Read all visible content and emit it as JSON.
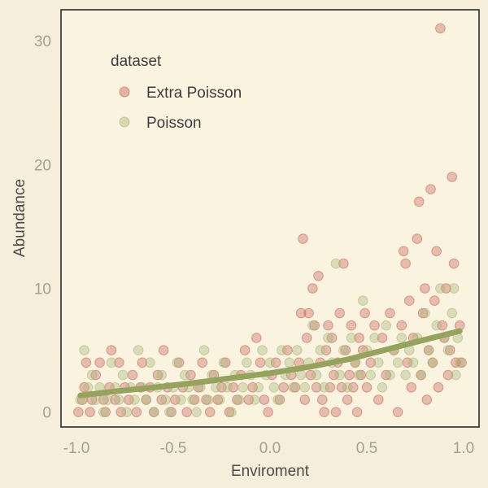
{
  "chart_data": {
    "type": "scatter",
    "xlabel": "Enviroment",
    "ylabel": "Abundance",
    "xlim": [
      -1.08,
      1.08
    ],
    "ylim": [
      -1.2,
      32.5
    ],
    "xticks": [
      -1.0,
      -0.5,
      0.0,
      0.5,
      1.0
    ],
    "xtick_labels": [
      "-1.0",
      "-0.5",
      "0.0",
      "0.5",
      "1.0"
    ],
    "yticks": [
      0,
      10,
      20,
      30
    ],
    "ytick_labels": [
      "0",
      "10",
      "20",
      "30"
    ],
    "grid": false,
    "legend": {
      "title": "dataset",
      "placement": "top-left",
      "entries": [
        {
          "label": "Extra Poisson",
          "color": "#c8635a"
        },
        {
          "label": "Poisson",
          "color": "#a9b87a"
        }
      ]
    },
    "series": [
      {
        "name": "Extra Poisson",
        "color": "#c8635a",
        "points": [
          [
            -0.99,
            0
          ],
          [
            -0.97,
            1
          ],
          [
            -0.96,
            2
          ],
          [
            -0.95,
            4
          ],
          [
            -0.93,
            0
          ],
          [
            -0.92,
            1
          ],
          [
            -0.9,
            3
          ],
          [
            -0.88,
            4
          ],
          [
            -0.86,
            1
          ],
          [
            -0.85,
            0
          ],
          [
            -0.83,
            2
          ],
          [
            -0.82,
            5
          ],
          [
            -0.8,
            1
          ],
          [
            -0.78,
            4
          ],
          [
            -0.77,
            0
          ],
          [
            -0.75,
            2
          ],
          [
            -0.73,
            1
          ],
          [
            -0.71,
            3
          ],
          [
            -0.69,
            0
          ],
          [
            -0.67,
            2
          ],
          [
            -0.66,
            4
          ],
          [
            -0.64,
            1
          ],
          [
            -0.62,
            2
          ],
          [
            -0.6,
            0
          ],
          [
            -0.58,
            3
          ],
          [
            -0.56,
            1
          ],
          [
            -0.55,
            5
          ],
          [
            -0.53,
            2
          ],
          [
            -0.51,
            0
          ],
          [
            -0.49,
            1
          ],
          [
            -0.47,
            4
          ],
          [
            -0.45,
            2
          ],
          [
            -0.43,
            0
          ],
          [
            -0.41,
            3
          ],
          [
            -0.39,
            1
          ],
          [
            -0.37,
            2
          ],
          [
            -0.35,
            4
          ],
          [
            -0.33,
            1
          ],
          [
            -0.31,
            0
          ],
          [
            -0.29,
            3
          ],
          [
            -0.27,
            1
          ],
          [
            -0.25,
            2
          ],
          [
            -0.23,
            4
          ],
          [
            -0.21,
            0
          ],
          [
            -0.19,
            2
          ],
          [
            -0.17,
            1
          ],
          [
            -0.15,
            3
          ],
          [
            -0.13,
            5
          ],
          [
            -0.11,
            1
          ],
          [
            -0.09,
            2
          ],
          [
            -0.07,
            6
          ],
          [
            -0.05,
            4
          ],
          [
            -0.03,
            1
          ],
          [
            -0.01,
            0
          ],
          [
            0.01,
            3
          ],
          [
            0.03,
            4
          ],
          [
            0.05,
            1
          ],
          [
            0.07,
            2
          ],
          [
            0.09,
            5
          ],
          [
            0.11,
            3
          ],
          [
            0.13,
            2
          ],
          [
            0.15,
            4
          ],
          [
            0.16,
            8
          ],
          [
            0.17,
            14
          ],
          [
            0.18,
            1
          ],
          [
            0.19,
            6
          ],
          [
            0.2,
            8
          ],
          [
            0.21,
            3
          ],
          [
            0.22,
            10
          ],
          [
            0.23,
            7
          ],
          [
            0.24,
            2
          ],
          [
            0.25,
            11
          ],
          [
            0.26,
            4
          ],
          [
            0.27,
            1
          ],
          [
            0.28,
            0
          ],
          [
            0.29,
            5
          ],
          [
            0.3,
            7
          ],
          [
            0.31,
            2
          ],
          [
            0.32,
            6
          ],
          [
            0.33,
            3
          ],
          [
            0.34,
            0
          ],
          [
            0.35,
            4
          ],
          [
            0.36,
            8
          ],
          [
            0.37,
            2
          ],
          [
            0.38,
            12
          ],
          [
            0.39,
            5
          ],
          [
            0.4,
            1
          ],
          [
            0.41,
            3
          ],
          [
            0.42,
            7
          ],
          [
            0.43,
            2
          ],
          [
            0.44,
            4
          ],
          [
            0.45,
            0
          ],
          [
            0.46,
            6
          ],
          [
            0.47,
            3
          ],
          [
            0.48,
            5
          ],
          [
            0.49,
            8
          ],
          [
            0.5,
            2
          ],
          [
            0.52,
            4
          ],
          [
            0.54,
            7
          ],
          [
            0.56,
            1
          ],
          [
            0.58,
            6
          ],
          [
            0.6,
            3
          ],
          [
            0.62,
            8
          ],
          [
            0.64,
            5
          ],
          [
            0.66,
            0
          ],
          [
            0.68,
            7
          ],
          [
            0.69,
            13
          ],
          [
            0.7,
            12
          ],
          [
            0.71,
            4
          ],
          [
            0.72,
            9
          ],
          [
            0.73,
            2
          ],
          [
            0.74,
            6
          ],
          [
            0.76,
            14
          ],
          [
            0.77,
            17
          ],
          [
            0.78,
            3
          ],
          [
            0.79,
            8
          ],
          [
            0.8,
            10
          ],
          [
            0.81,
            1
          ],
          [
            0.82,
            5
          ],
          [
            0.83,
            18
          ],
          [
            0.84,
            4
          ],
          [
            0.85,
            9
          ],
          [
            0.86,
            13
          ],
          [
            0.87,
            2
          ],
          [
            0.88,
            31
          ],
          [
            0.89,
            7
          ],
          [
            0.9,
            6
          ],
          [
            0.91,
            10
          ],
          [
            0.92,
            3
          ],
          [
            0.93,
            5
          ],
          [
            0.94,
            19
          ],
          [
            0.95,
            12
          ],
          [
            0.96,
            4
          ],
          [
            0.98,
            7
          ],
          [
            0.99,
            4
          ]
        ]
      },
      {
        "name": "Poisson",
        "color": "#a9b87a",
        "points": [
          [
            -0.98,
            1
          ],
          [
            -0.96,
            5
          ],
          [
            -0.94,
            2
          ],
          [
            -0.92,
            3
          ],
          [
            -0.9,
            1
          ],
          [
            -0.88,
            2
          ],
          [
            -0.86,
            0
          ],
          [
            -0.84,
            1
          ],
          [
            -0.82,
            4
          ],
          [
            -0.8,
            2
          ],
          [
            -0.78,
            1
          ],
          [
            -0.76,
            3
          ],
          [
            -0.74,
            0
          ],
          [
            -0.72,
            2
          ],
          [
            -0.7,
            1
          ],
          [
            -0.68,
            5
          ],
          [
            -0.66,
            2
          ],
          [
            -0.64,
            1
          ],
          [
            -0.62,
            4
          ],
          [
            -0.6,
            0
          ],
          [
            -0.58,
            2
          ],
          [
            -0.56,
            3
          ],
          [
            -0.54,
            1
          ],
          [
            -0.52,
            0
          ],
          [
            -0.5,
            2
          ],
          [
            -0.48,
            4
          ],
          [
            -0.46,
            1
          ],
          [
            -0.44,
            3
          ],
          [
            -0.42,
            2
          ],
          [
            -0.4,
            1
          ],
          [
            -0.38,
            0
          ],
          [
            -0.36,
            2
          ],
          [
            -0.34,
            5
          ],
          [
            -0.32,
            1
          ],
          [
            -0.3,
            3
          ],
          [
            -0.28,
            2
          ],
          [
            -0.26,
            1
          ],
          [
            -0.24,
            4
          ],
          [
            -0.22,
            2
          ],
          [
            -0.2,
            0
          ],
          [
            -0.18,
            3
          ],
          [
            -0.16,
            1
          ],
          [
            -0.14,
            2
          ],
          [
            -0.12,
            4
          ],
          [
            -0.1,
            3
          ],
          [
            -0.08,
            1
          ],
          [
            -0.06,
            2
          ],
          [
            -0.04,
            5
          ],
          [
            -0.02,
            3
          ],
          [
            0.0,
            4
          ],
          [
            0.02,
            2
          ],
          [
            0.04,
            1
          ],
          [
            0.06,
            5
          ],
          [
            0.08,
            3
          ],
          [
            0.1,
            4
          ],
          [
            0.12,
            2
          ],
          [
            0.14,
            5
          ],
          [
            0.16,
            3
          ],
          [
            0.18,
            2
          ],
          [
            0.2,
            4
          ],
          [
            0.22,
            7
          ],
          [
            0.24,
            3
          ],
          [
            0.26,
            5
          ],
          [
            0.28,
            2
          ],
          [
            0.3,
            6
          ],
          [
            0.32,
            4
          ],
          [
            0.34,
            12
          ],
          [
            0.36,
            3
          ],
          [
            0.38,
            5
          ],
          [
            0.4,
            2
          ],
          [
            0.42,
            6
          ],
          [
            0.44,
            4
          ],
          [
            0.46,
            3
          ],
          [
            0.48,
            9
          ],
          [
            0.5,
            5
          ],
          [
            0.52,
            3
          ],
          [
            0.54,
            6
          ],
          [
            0.56,
            4
          ],
          [
            0.58,
            2
          ],
          [
            0.6,
            7
          ],
          [
            0.62,
            3
          ],
          [
            0.64,
            5
          ],
          [
            0.66,
            4
          ],
          [
            0.68,
            6
          ],
          [
            0.7,
            3
          ],
          [
            0.72,
            5
          ],
          [
            0.74,
            4
          ],
          [
            0.76,
            6
          ],
          [
            0.78,
            3
          ],
          [
            0.8,
            8
          ],
          [
            0.82,
            5
          ],
          [
            0.84,
            4
          ],
          [
            0.86,
            7
          ],
          [
            0.88,
            10
          ],
          [
            0.9,
            6
          ],
          [
            0.92,
            5
          ],
          [
            0.94,
            8
          ],
          [
            0.95,
            10
          ],
          [
            0.96,
            3
          ],
          [
            0.97,
            6
          ],
          [
            0.98,
            4
          ]
        ]
      }
    ],
    "fit_line": {
      "color": "#96a35e",
      "description_source": "smooth exponential curve",
      "points": [
        [
          -0.98,
          1.35
        ],
        [
          -0.8,
          1.68
        ],
        [
          -0.6,
          2.0
        ],
        [
          -0.4,
          2.35
        ],
        [
          -0.2,
          2.75
        ],
        [
          0.0,
          3.15
        ],
        [
          0.2,
          3.65
        ],
        [
          0.4,
          4.25
        ],
        [
          0.6,
          5.05
        ],
        [
          0.8,
          5.85
        ],
        [
          0.98,
          6.55
        ]
      ]
    }
  }
}
